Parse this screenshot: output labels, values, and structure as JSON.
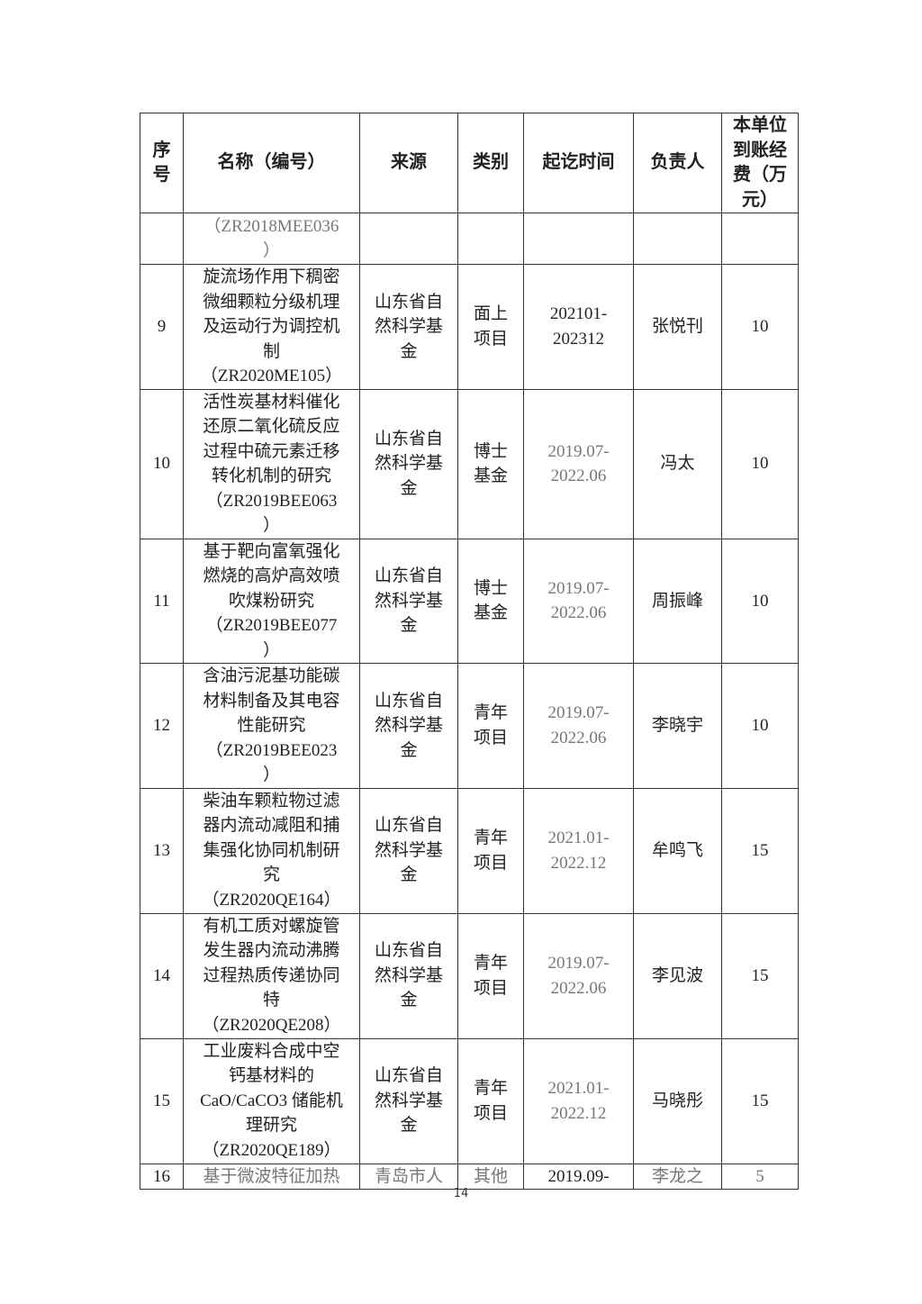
{
  "headers": [
    "序\n号",
    "名称（编号）",
    "来源",
    "类别",
    "起讫时间",
    "负责人",
    "本单位\n到账经\n费（万\n元）"
  ],
  "rows": [
    {
      "no": "",
      "name": "（ZR2018MEE036\n）",
      "source": "",
      "type": "",
      "period": "",
      "leader": "",
      "funds": ""
    },
    {
      "no": "9",
      "name": "旋流场作用下稠密\n微细颗粒分级机理\n及运动行为调控机\n制\n（ZR2020ME105）",
      "source": "山东省自\n然科学基\n金",
      "type": "面上\n项目",
      "period": "202101-\n202312",
      "leader": "张悦刊",
      "funds": "10"
    },
    {
      "no": "10",
      "name": "活性炭基材料催化\n还原二氧化硫反应\n过程中硫元素迁移\n转化机制的研究\n（ZR2019BEE063\n）",
      "source": "山东省自\n然科学基\n金",
      "type": "博士\n基金",
      "period": "2019.07-\n2022.06",
      "leader": "冯太",
      "funds": "10"
    },
    {
      "no": "11",
      "name": "基于靶向富氧强化\n燃烧的高炉高效喷\n吹煤粉研究\n（ZR2019BEE077\n）",
      "source": "山东省自\n然科学基\n金",
      "type": "博士\n基金",
      "period": "2019.07-\n2022.06",
      "leader": "周振峰",
      "funds": "10"
    },
    {
      "no": "12",
      "name": "含油污泥基功能碳\n材料制备及其电容\n性能研究\n（ZR2019BEE023\n）",
      "source": "山东省自\n然科学基\n金",
      "type": "青年\n项目",
      "period": "2019.07-\n2022.06",
      "leader": "李晓宇",
      "funds": "10"
    },
    {
      "no": "13",
      "name": "柴油车颗粒物过滤\n器内流动减阻和捕\n集强化协同机制研\n究\n（ZR2020QE164）",
      "source": "山东省自\n然科学基\n金",
      "type": "青年\n项目",
      "period": "2021.01-\n2022.12",
      "leader": "牟鸣飞",
      "funds": "15"
    },
    {
      "no": "14",
      "name": "有机工质对螺旋管\n发生器内流动沸腾\n过程热质传递协同\n特\n（ZR2020QE208）",
      "source": "山东省自\n然科学基\n金",
      "type": "青年\n项目",
      "period": "2019.07-\n2022.06",
      "leader": "李见波",
      "funds": "15"
    },
    {
      "no": "15",
      "name": "工业废料合成中空\n钙基材料的\nCaO/CaCO3 储能机\n理研究\n（ZR2020QE189）",
      "source": "山东省自\n然科学基\n金",
      "type": "青年\n项目",
      "period": "2021.01-\n2022.12",
      "leader": "马晓彤",
      "funds": "15"
    },
    {
      "no": "16",
      "name": "基于微波特征加热",
      "source": "青岛市人",
      "type": "其他",
      "period": "2019.09-",
      "leader": "李龙之",
      "funds": "5"
    }
  ],
  "page_number": "14"
}
